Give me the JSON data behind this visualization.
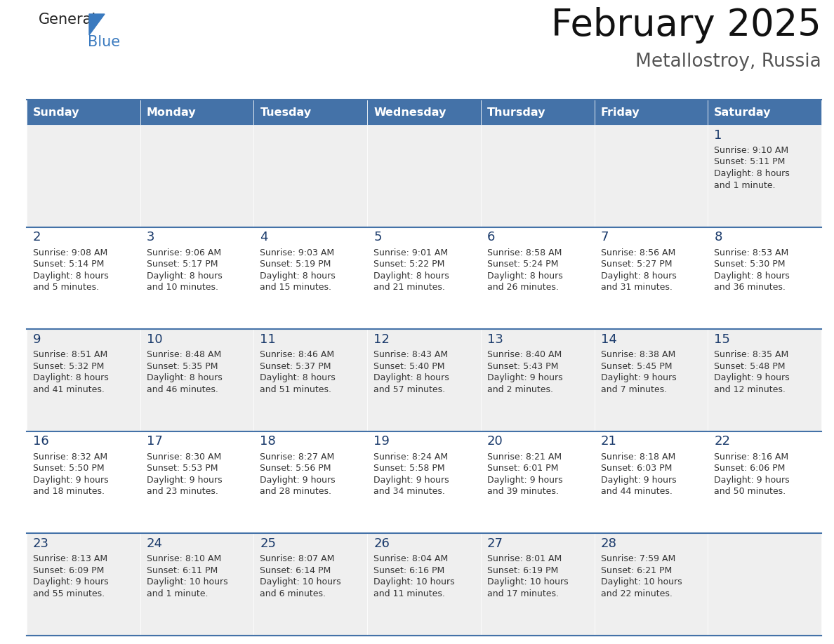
{
  "title": "February 2025",
  "subtitle": "Metallostroy, Russia",
  "days_of_week": [
    "Sunday",
    "Monday",
    "Tuesday",
    "Wednesday",
    "Thursday",
    "Friday",
    "Saturday"
  ],
  "header_bg": "#4472a8",
  "header_text": "#ffffff",
  "cell_bg_even": "#efefef",
  "cell_bg_odd": "#ffffff",
  "border_color": "#4472a8",
  "text_color": "#333333",
  "num_color": "#1a3a6b",
  "calendar": [
    [
      null,
      null,
      null,
      null,
      null,
      null,
      1
    ],
    [
      2,
      3,
      4,
      5,
      6,
      7,
      8
    ],
    [
      9,
      10,
      11,
      12,
      13,
      14,
      15
    ],
    [
      16,
      17,
      18,
      19,
      20,
      21,
      22
    ],
    [
      23,
      24,
      25,
      26,
      27,
      28,
      null
    ]
  ],
  "sunrise": {
    "1": "9:10 AM",
    "2": "9:08 AM",
    "3": "9:06 AM",
    "4": "9:03 AM",
    "5": "9:01 AM",
    "6": "8:58 AM",
    "7": "8:56 AM",
    "8": "8:53 AM",
    "9": "8:51 AM",
    "10": "8:48 AM",
    "11": "8:46 AM",
    "12": "8:43 AM",
    "13": "8:40 AM",
    "14": "8:38 AM",
    "15": "8:35 AM",
    "16": "8:32 AM",
    "17": "8:30 AM",
    "18": "8:27 AM",
    "19": "8:24 AM",
    "20": "8:21 AM",
    "21": "8:18 AM",
    "22": "8:16 AM",
    "23": "8:13 AM",
    "24": "8:10 AM",
    "25": "8:07 AM",
    "26": "8:04 AM",
    "27": "8:01 AM",
    "28": "7:59 AM"
  },
  "sunset": {
    "1": "5:11 PM",
    "2": "5:14 PM",
    "3": "5:17 PM",
    "4": "5:19 PM",
    "5": "5:22 PM",
    "6": "5:24 PM",
    "7": "5:27 PM",
    "8": "5:30 PM",
    "9": "5:32 PM",
    "10": "5:35 PM",
    "11": "5:37 PM",
    "12": "5:40 PM",
    "13": "5:43 PM",
    "14": "5:45 PM",
    "15": "5:48 PM",
    "16": "5:50 PM",
    "17": "5:53 PM",
    "18": "5:56 PM",
    "19": "5:58 PM",
    "20": "6:01 PM",
    "21": "6:03 PM",
    "22": "6:06 PM",
    "23": "6:09 PM",
    "24": "6:11 PM",
    "25": "6:14 PM",
    "26": "6:16 PM",
    "27": "6:19 PM",
    "28": "6:21 PM"
  },
  "daylight": {
    "1": "8 hours\nand 1 minute.",
    "2": "8 hours\nand 5 minutes.",
    "3": "8 hours\nand 10 minutes.",
    "4": "8 hours\nand 15 minutes.",
    "5": "8 hours\nand 21 minutes.",
    "6": "8 hours\nand 26 minutes.",
    "7": "8 hours\nand 31 minutes.",
    "8": "8 hours\nand 36 minutes.",
    "9": "8 hours\nand 41 minutes.",
    "10": "8 hours\nand 46 minutes.",
    "11": "8 hours\nand 51 minutes.",
    "12": "8 hours\nand 57 minutes.",
    "13": "9 hours\nand 2 minutes.",
    "14": "9 hours\nand 7 minutes.",
    "15": "9 hours\nand 12 minutes.",
    "16": "9 hours\nand 18 minutes.",
    "17": "9 hours\nand 23 minutes.",
    "18": "9 hours\nand 28 minutes.",
    "19": "9 hours\nand 34 minutes.",
    "20": "9 hours\nand 39 minutes.",
    "21": "9 hours\nand 44 minutes.",
    "22": "9 hours\nand 50 minutes.",
    "23": "9 hours\nand 55 minutes.",
    "24": "10 hours\nand 1 minute.",
    "25": "10 hours\nand 6 minutes.",
    "26": "10 hours\nand 11 minutes.",
    "27": "10 hours\nand 17 minutes.",
    "28": "10 hours\nand 22 minutes."
  },
  "fig_width": 11.88,
  "fig_height": 9.18,
  "dpi": 100
}
